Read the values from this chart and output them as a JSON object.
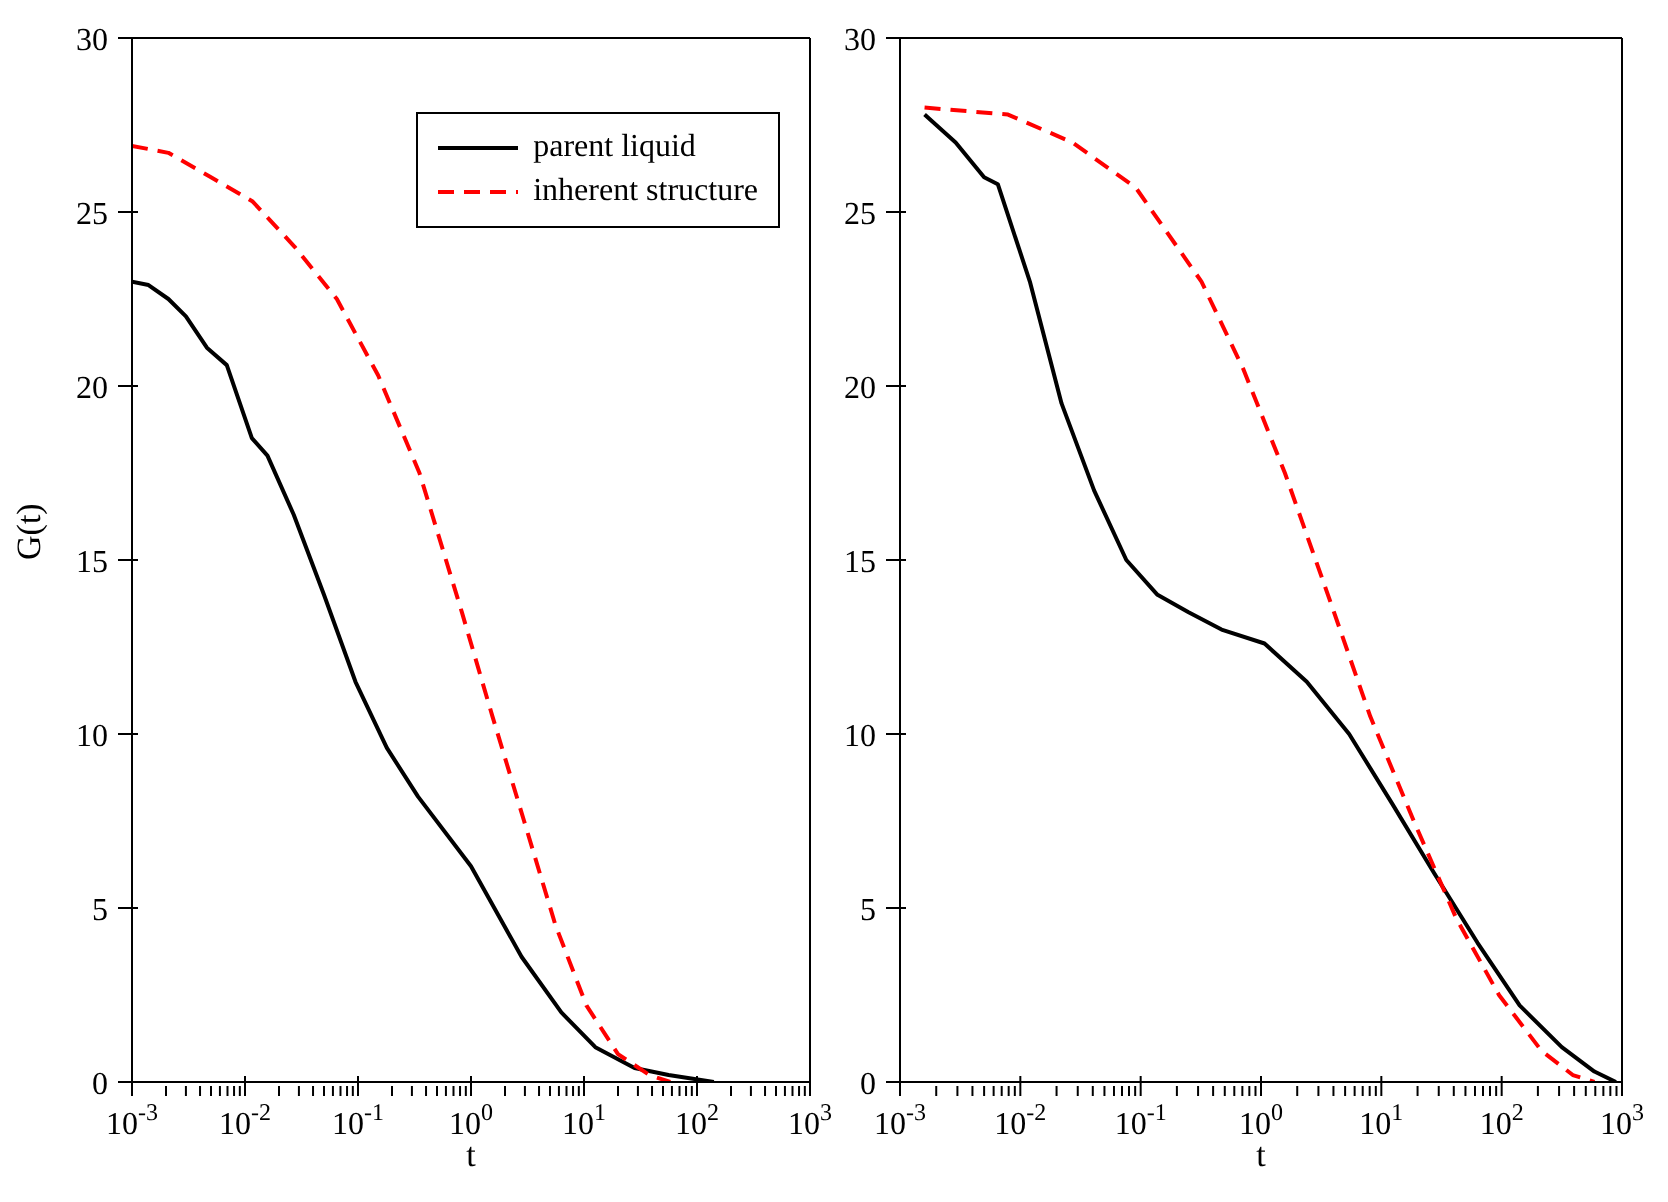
{
  "chart_data": [
    {
      "type": "line",
      "ylabel": "G(t)",
      "xlabel": "t",
      "log": "x",
      "legend": "top right",
      "marker": "none",
      "xlim": [
        0.001,
        1000
      ],
      "ylim": [
        0,
        30
      ],
      "yticks": [
        0,
        5,
        10,
        15,
        20,
        25,
        30
      ],
      "xticks": [
        {
          "value": 0.001,
          "label": "10$^{-3}$"
        },
        {
          "value": 0.002,
          "label": null
        },
        {
          "value": 0.003,
          "label": null
        },
        {
          "value": 0.004,
          "label": null
        },
        {
          "value": 0.005,
          "label": null
        },
        {
          "value": 0.006,
          "label": null
        },
        {
          "value": 0.007,
          "label": null
        },
        {
          "value": 0.008,
          "label": null
        },
        {
          "value": 0.009,
          "label": null
        },
        {
          "value": 0.01,
          "label": "10$^{-2}$"
        },
        {
          "value": 0.02,
          "label": null
        },
        {
          "value": 0.03,
          "label": null
        },
        {
          "value": 0.04,
          "label": null
        },
        {
          "value": 0.05,
          "label": null
        },
        {
          "value": 0.06,
          "label": null
        },
        {
          "value": 0.07,
          "label": null
        },
        {
          "value": 0.08,
          "label": null
        },
        {
          "value": 0.09,
          "label": null
        },
        {
          "value": 0.1,
          "label": "10$^{-1}$"
        },
        {
          "value": 0.2,
          "label": null
        },
        {
          "value": 0.3,
          "label": null
        },
        {
          "value": 0.4,
          "label": null
        },
        {
          "value": 0.5,
          "label": null
        },
        {
          "value": 0.6,
          "label": null
        },
        {
          "value": 0.7,
          "label": null
        },
        {
          "value": 0.8,
          "label": null
        },
        {
          "value": 0.9,
          "label": null
        },
        {
          "value": 1,
          "label": "10$^{0}$"
        },
        {
          "value": 2,
          "label": null
        },
        {
          "value": 3,
          "label": null
        },
        {
          "value": 4,
          "label": null
        },
        {
          "value": 5,
          "label": null
        },
        {
          "value": 6,
          "label": null
        },
        {
          "value": 7,
          "label": null
        },
        {
          "value": 8,
          "label": null
        },
        {
          "value": 9,
          "label": null
        },
        {
          "value": 10,
          "label": "10$^{1}$"
        },
        {
          "value": 20,
          "label": null
        },
        {
          "value": 30,
          "label": null
        },
        {
          "value": 40,
          "label": null
        },
        {
          "value": 50,
          "label": null
        },
        {
          "value": 60,
          "label": null
        },
        {
          "value": 70,
          "label": null
        },
        {
          "value": 80,
          "label": null
        },
        {
          "value": 90,
          "label": null
        },
        {
          "value": 100,
          "label": "10$^{2}$"
        },
        {
          "value": 200,
          "label": null
        },
        {
          "value": 300,
          "label": null
        },
        {
          "value": 400,
          "label": null
        },
        {
          "value": 500,
          "label": null
        },
        {
          "value": 600,
          "label": null
        },
        {
          "value": 700,
          "label": null
        },
        {
          "value": 800,
          "label": null
        },
        {
          "value": 900,
          "label": null
        },
        {
          "value": 1000,
          "label": "10$^{3}$"
        }
      ],
      "series": [
        {
          "name": "parent liquid",
          "color": "#000000",
          "line_style": "solid",
          "x": [
            0.001,
            0.0014,
            0.0021,
            0.003,
            0.0046,
            0.0069,
            0.0115,
            0.0158,
            0.027,
            0.05,
            0.095,
            0.18,
            0.34,
            1,
            2.8,
            6.3,
            12.6,
            28,
            56,
            141
          ],
          "values": [
            23,
            22.9,
            22.5,
            22,
            21.1,
            20.6,
            18.5,
            18,
            16.3,
            14,
            11.5,
            9.6,
            8.2,
            6.2,
            3.6,
            2,
            1,
            0.4,
            0.2,
            0
          ]
        },
        {
          "name": "inherent structure",
          "color": "#ff0000",
          "line_style": "dashed",
          "x": [
            0.001,
            0.0021,
            0.005,
            0.0117,
            0.0275,
            0.065,
            0.151,
            0.35,
            0.83,
            1.55,
            2.95,
            5.6,
            10.5,
            20,
            38,
            58
          ],
          "values": [
            26.9,
            26.7,
            26,
            25.3,
            24,
            22.5,
            20.3,
            17.5,
            13.5,
            10.5,
            7.5,
            4.5,
            2.2,
            0.8,
            0.2,
            0
          ]
        }
      ]
    },
    {
      "type": "line",
      "xlabel": "t",
      "log": "x",
      "marker": "none",
      "xlim": [
        0.001,
        1000
      ],
      "ylim": [
        0,
        30
      ],
      "yticks": [
        0,
        5,
        10,
        15,
        20,
        25,
        30
      ],
      "xticks": [
        {
          "value": 0.001,
          "label": "10$^{-3}$"
        },
        {
          "value": 0.002,
          "label": null
        },
        {
          "value": 0.003,
          "label": null
        },
        {
          "value": 0.004,
          "label": null
        },
        {
          "value": 0.005,
          "label": null
        },
        {
          "value": 0.006,
          "label": null
        },
        {
          "value": 0.007,
          "label": null
        },
        {
          "value": 0.008,
          "label": null
        },
        {
          "value": 0.009,
          "label": null
        },
        {
          "value": 0.01,
          "label": "10$^{-2}$"
        },
        {
          "value": 0.02,
          "label": null
        },
        {
          "value": 0.03,
          "label": null
        },
        {
          "value": 0.04,
          "label": null
        },
        {
          "value": 0.05,
          "label": null
        },
        {
          "value": 0.06,
          "label": null
        },
        {
          "value": 0.07,
          "label": null
        },
        {
          "value": 0.08,
          "label": null
        },
        {
          "value": 0.09,
          "label": null
        },
        {
          "value": 0.1,
          "label": "10$^{-1}$"
        },
        {
          "value": 0.2,
          "label": null
        },
        {
          "value": 0.3,
          "label": null
        },
        {
          "value": 0.4,
          "label": null
        },
        {
          "value": 0.5,
          "label": null
        },
        {
          "value": 0.6,
          "label": null
        },
        {
          "value": 0.7,
          "label": null
        },
        {
          "value": 0.8,
          "label": null
        },
        {
          "value": 0.9,
          "label": null
        },
        {
          "value": 1,
          "label": "10$^{0}$"
        },
        {
          "value": 2,
          "label": null
        },
        {
          "value": 3,
          "label": null
        },
        {
          "value": 4,
          "label": null
        },
        {
          "value": 5,
          "label": null
        },
        {
          "value": 6,
          "label": null
        },
        {
          "value": 7,
          "label": null
        },
        {
          "value": 8,
          "label": null
        },
        {
          "value": 9,
          "label": null
        },
        {
          "value": 10,
          "label": "10$^{1}$"
        },
        {
          "value": 20,
          "label": null
        },
        {
          "value": 30,
          "label": null
        },
        {
          "value": 40,
          "label": null
        },
        {
          "value": 50,
          "label": null
        },
        {
          "value": 60,
          "label": null
        },
        {
          "value": 70,
          "label": null
        },
        {
          "value": 80,
          "label": null
        },
        {
          "value": 90,
          "label": null
        },
        {
          "value": 100,
          "label": "10$^{2}$"
        },
        {
          "value": 200,
          "label": null
        },
        {
          "value": 300,
          "label": null
        },
        {
          "value": 400,
          "label": null
        },
        {
          "value": 500,
          "label": null
        },
        {
          "value": 600,
          "label": null
        },
        {
          "value": 700,
          "label": null
        },
        {
          "value": 800,
          "label": null
        },
        {
          "value": 900,
          "label": null
        },
        {
          "value": 1000,
          "label": "10$^{3}$"
        }
      ],
      "series": [
        {
          "color": "#000000",
          "line_style": "solid",
          "x": [
            0.0016,
            0.0029,
            0.005,
            0.0065,
            0.012,
            0.022,
            0.041,
            0.076,
            0.138,
            0.25,
            0.47,
            1.07,
            2.4,
            5.4,
            12.3,
            27.5,
            63,
            141,
            316,
            590,
            890
          ],
          "values": [
            27.8,
            27,
            26,
            25.8,
            23,
            19.5,
            17,
            15,
            14,
            13.5,
            13,
            12.6,
            11.5,
            10,
            8,
            6,
            4,
            2.2,
            1,
            0.3,
            0
          ]
        },
        {
          "color": "#ff0000",
          "line_style": "dashed",
          "x": [
            0.0016,
            0.0079,
            0.027,
            0.091,
            0.32,
            0.71,
            1.58,
            3.6,
            8.1,
            18.6,
            42,
            95,
            214,
            390,
            590
          ],
          "values": [
            28,
            27.8,
            27,
            25.7,
            23,
            20.5,
            17.5,
            14,
            10.5,
            7.5,
            4.7,
            2.5,
            0.9,
            0.2,
            0
          ]
        }
      ]
    }
  ]
}
